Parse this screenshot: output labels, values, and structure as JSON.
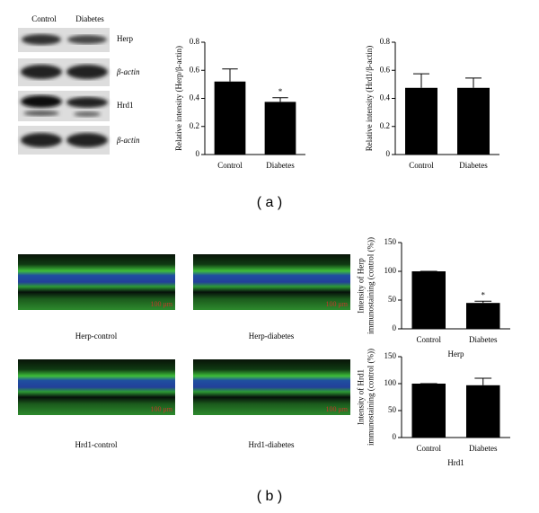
{
  "blot": {
    "columns": [
      "Control",
      "Diabetes"
    ],
    "rows": [
      "Herp",
      "β-actin",
      "Hrd1",
      "β-actin"
    ]
  },
  "chart_data": [
    {
      "type": "bar",
      "ylabel": [
        "Relative intensity (Herp/β-actin)"
      ],
      "categories": [
        "Control",
        "Diabetes"
      ],
      "values": [
        0.52,
        0.375
      ],
      "errors": [
        0.09,
        0.03
      ],
      "color": "#000000",
      "ylim": [
        0,
        0.8
      ],
      "yticks": [
        0,
        0.2,
        0.4,
        0.6,
        0.8
      ],
      "annotations": [
        {
          "text": "*",
          "category": "Diabetes"
        }
      ]
    },
    {
      "type": "bar",
      "ylabel": [
        "Relative intensity (Hrd1/β-actin)"
      ],
      "categories": [
        "Control",
        "Diabetes"
      ],
      "values": [
        0.475,
        0.475
      ],
      "errors": [
        0.1,
        0.07
      ],
      "color": "#000000",
      "ylim": [
        0,
        0.8
      ],
      "yticks": [
        0,
        0.2,
        0.4,
        0.6,
        0.8
      ]
    },
    {
      "type": "bar",
      "ylabel": [
        "Intensity of Herp",
        "immunostaining (control (%))"
      ],
      "xlabel": "Herp",
      "categories": [
        "Control",
        "Diabetes"
      ],
      "values": [
        100,
        45
      ],
      "errors": [
        0,
        3
      ],
      "color": "#000000",
      "ylim": [
        0,
        150
      ],
      "yticks": [
        0,
        50,
        100,
        150
      ],
      "annotations": [
        {
          "text": "*",
          "category": "Diabetes"
        }
      ]
    },
    {
      "type": "bar",
      "ylabel": [
        "Intensity of Hrd1",
        "immunostaining (control (%))"
      ],
      "xlabel": "Hrd1",
      "categories": [
        "Control",
        "Diabetes"
      ],
      "values": [
        100,
        97
      ],
      "errors": [
        0,
        13
      ],
      "color": "#000000",
      "ylim": [
        0,
        150
      ],
      "yticks": [
        0,
        50,
        100,
        150
      ]
    }
  ],
  "images": {
    "labels": [
      "Herp-control",
      "Herp-diabetes",
      "Hrd1-control",
      "Hrd1-diabetes"
    ],
    "scale_bar": "100 μm"
  },
  "panel_labels": [
    "( a )",
    "( b )"
  ]
}
